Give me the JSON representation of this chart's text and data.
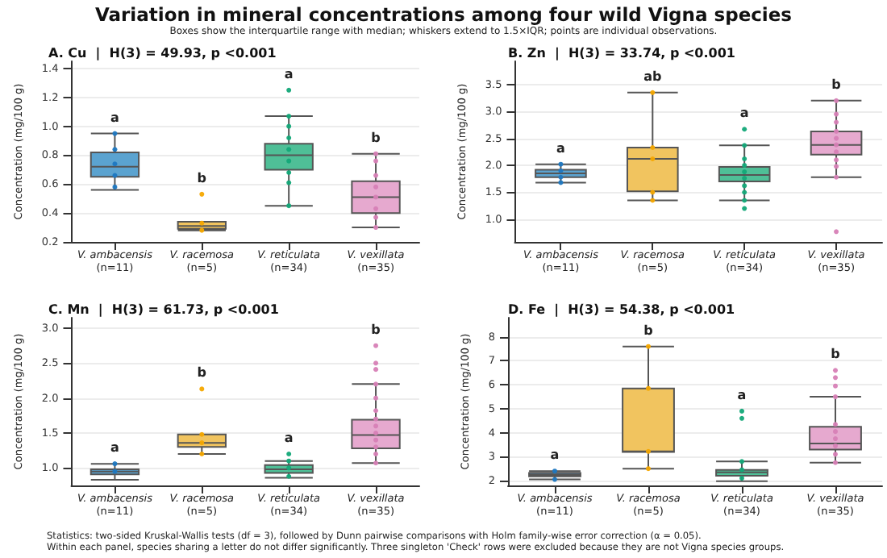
{
  "chart_data": [
    {
      "type": "box",
      "title": "A. Cu  |  H(3) = 49.93, p <0.001",
      "ylabel": "Concentration (mg/100 g)",
      "grid": "y",
      "categories": [
        "V. ambacensis\n(n=11)",
        "V. racemosa\n(n=5)",
        "V. reticulata\n(n=34)",
        "V. vexillata\n(n=35)"
      ],
      "ylim": [
        0.2,
        1.45
      ],
      "yticks": [
        0.2,
        0.4,
        0.6,
        0.8,
        {
          "value": 1,
          "label": "1.0"
        },
        1.2,
        1.4
      ],
      "annotations": [
        "Variation in mineral concentrations among four wild Vigna species",
        "Boxes show the interquartile range with median; whiskers extend to 1.5×IQR; points are individual observations.",
        "a",
        "b",
        "a",
        "b"
      ],
      "series": [
        {
          "type": "box",
          "colors": [
            "#5ba3d0",
            "#f1c45f",
            "#4fbf97",
            "#e6a9cf"
          ],
          "boxes": [
            {
              "low": 0.56,
              "q1": 0.65,
              "median": 0.72,
              "q3": 0.82,
              "high": 0.95
            },
            {
              "low": 0.28,
              "q1": 0.29,
              "median": 0.31,
              "q3": 0.34,
              "high": 0.34
            },
            {
              "low": 0.45,
              "q1": 0.7,
              "median": 0.8,
              "q3": 0.88,
              "high": 1.07
            },
            {
              "low": 0.3,
              "q1": 0.4,
              "median": 0.51,
              "q3": 0.62,
              "high": 0.81
            }
          ]
        },
        {
          "type": "scatter",
          "color": "#1f78c1",
          "x": [
            "V. ambacensis\n(n=11)",
            "V. ambacensis\n(n=11)",
            "V. ambacensis\n(n=11)",
            "V. ambacensis\n(n=11)",
            "V. ambacensis\n(n=11)"
          ],
          "values": [
            0.95,
            0.84,
            0.74,
            0.66,
            0.58
          ]
        },
        {
          "type": "scatter",
          "color": "#f5a800",
          "x": [
            "V. racemosa\n(n=5)",
            "V. racemosa\n(n=5)",
            "V. racemosa\n(n=5)"
          ],
          "values": [
            0.53,
            0.33,
            0.28
          ]
        },
        {
          "type": "scatter",
          "color": "#13a878",
          "x": [
            "V. reticulata\n(n=34)",
            "V. reticulata\n(n=34)",
            "V. reticulata\n(n=34)",
            "V. reticulata\n(n=34)",
            "V. reticulata\n(n=34)",
            "V. reticulata\n(n=34)",
            "V. reticulata\n(n=34)",
            "V. reticulata\n(n=34)",
            "V. reticulata\n(n=34)"
          ],
          "values": [
            1.25,
            1.07,
            1.0,
            0.92,
            0.84,
            0.76,
            0.68,
            0.61,
            0.45
          ]
        },
        {
          "type": "scatter",
          "color": "#d77fb6",
          "x": [
            "V. vexillata\n(n=35)",
            "V. vexillata\n(n=35)",
            "V. vexillata\n(n=35)",
            "V. vexillata\n(n=35)",
            "V. vexillata\n(n=35)",
            "V. vexillata\n(n=35)",
            "V. vexillata\n(n=35)",
            "V. vexillata\n(n=35)"
          ],
          "values": [
            0.81,
            0.76,
            0.66,
            0.58,
            0.51,
            0.43,
            0.37,
            0.3
          ]
        }
      ]
    },
    {
      "type": "box",
      "title": "B. Zn  |  H(3) = 33.74, p <0.001",
      "ylabel": "Concentration (mg/100 g)",
      "grid": "y",
      "categories": [
        "V. ambacensis\n(n=11)",
        "V. racemosa\n(n=5)",
        "V. reticulata\n(n=34)",
        "V. vexillata\n(n=35)"
      ],
      "ylim": [
        0.58,
        3.93
      ],
      "yticks": [
        {
          "value": 1,
          "label": "1.0"
        },
        1.5,
        {
          "value": 2,
          "label": "2.0"
        },
        2.5,
        {
          "value": 3,
          "label": "3.0"
        },
        3.5
      ],
      "annotations": [
        "a",
        "ab",
        "a",
        "b"
      ],
      "series": [
        {
          "type": "box",
          "colors": [
            "#5ba3d0",
            "#f1c45f",
            "#4fbf97",
            "#e6a9cf"
          ],
          "boxes": [
            {
              "low": 1.68,
              "q1": 1.78,
              "median": 1.85,
              "q3": 1.92,
              "high": 2.02
            },
            {
              "low": 1.35,
              "q1": 1.52,
              "median": 2.12,
              "q3": 2.33,
              "high": 3.35
            },
            {
              "low": 1.35,
              "q1": 1.7,
              "median": 1.82,
              "q3": 1.97,
              "high": 2.37
            },
            {
              "low": 1.78,
              "q1": 2.2,
              "median": 2.38,
              "q3": 2.63,
              "high": 3.2
            }
          ]
        },
        {
          "type": "scatter",
          "color": "#1f78c1",
          "x": [
            "V. ambacensis\n(n=11)",
            "V. ambacensis\n(n=11)",
            "V. ambacensis\n(n=11)",
            "V. ambacensis\n(n=11)"
          ],
          "values": [
            2.02,
            1.9,
            1.78,
            1.68
          ]
        },
        {
          "type": "scatter",
          "color": "#f5a800",
          "x": [
            "V. racemosa\n(n=5)",
            "V. racemosa\n(n=5)",
            "V. racemosa\n(n=5)",
            "V. racemosa\n(n=5)",
            "V. racemosa\n(n=5)"
          ],
          "values": [
            3.35,
            2.33,
            2.12,
            1.5,
            1.35
          ]
        },
        {
          "type": "scatter",
          "color": "#13a878",
          "x": [
            "V. reticulata\n(n=34)",
            "V. reticulata\n(n=34)",
            "V. reticulata\n(n=34)",
            "V. reticulata\n(n=34)",
            "V. reticulata\n(n=34)",
            "V. reticulata\n(n=34)",
            "V. reticulata\n(n=34)",
            "V. reticulata\n(n=34)",
            "V. reticulata\n(n=34)",
            "V. reticulata\n(n=34)"
          ],
          "values": [
            2.67,
            2.37,
            2.12,
            2.0,
            1.88,
            1.76,
            1.62,
            1.5,
            1.35,
            1.2
          ]
        },
        {
          "type": "scatter",
          "color": "#d77fb6",
          "x": [
            "V. vexillata\n(n=35)",
            "V. vexillata\n(n=35)",
            "V. vexillata\n(n=35)",
            "V. vexillata\n(n=35)",
            "V. vexillata\n(n=35)",
            "V. vexillata\n(n=35)",
            "V. vexillata\n(n=35)",
            "V. vexillata\n(n=35)",
            "V. vexillata\n(n=35)",
            "V. vexillata\n(n=35)",
            "V. vexillata\n(n=35)"
          ],
          "values": [
            3.2,
            2.95,
            2.8,
            2.63,
            2.5,
            2.38,
            2.25,
            2.1,
            1.98,
            1.78,
            0.77
          ]
        }
      ]
    },
    {
      "type": "box",
      "title": "C. Mn  |  H(3) = 61.73, p <0.001",
      "ylabel": "Concentration (mg/100 g)",
      "grid": "y",
      "categories": [
        "V. ambacensis\n(n=11)",
        "V. racemosa\n(n=5)",
        "V. reticulata\n(n=34)",
        "V. vexillata\n(n=35)"
      ],
      "ylim": [
        0.75,
        3.15
      ],
      "yticks": [
        {
          "value": 1,
          "label": "1.0"
        },
        1.5,
        {
          "value": 2,
          "label": "2.0"
        },
        2.5,
        {
          "value": 3,
          "label": "3.0"
        }
      ],
      "annotations": [
        "a",
        "b",
        "a",
        "b"
      ],
      "series": [
        {
          "type": "box",
          "colors": [
            "#5ba3d0",
            "#f1c45f",
            "#4fbf97",
            "#e6a9cf"
          ],
          "boxes": [
            {
              "low": 0.83,
              "q1": 0.91,
              "median": 0.95,
              "q3": 0.98,
              "high": 1.06
            },
            {
              "low": 1.2,
              "q1": 1.3,
              "median": 1.36,
              "q3": 1.48,
              "high": 1.48
            },
            {
              "low": 0.86,
              "q1": 0.93,
              "median": 0.98,
              "q3": 1.04,
              "high": 1.1
            },
            {
              "low": 1.07,
              "q1": 1.28,
              "median": 1.47,
              "q3": 1.69,
              "high": 2.2
            }
          ]
        },
        {
          "type": "scatter",
          "color": "#1f78c1",
          "x": [
            "V. ambacensis\n(n=11)",
            "V. ambacensis\n(n=11)"
          ],
          "values": [
            1.06,
            0.95
          ]
        },
        {
          "type": "scatter",
          "color": "#f5a800",
          "x": [
            "V. racemosa\n(n=5)",
            "V. racemosa\n(n=5)",
            "V. racemosa\n(n=5)",
            "V. racemosa\n(n=5)"
          ],
          "values": [
            2.13,
            1.48,
            1.36,
            1.2
          ]
        },
        {
          "type": "scatter",
          "color": "#13a878",
          "x": [
            "V. reticulata\n(n=34)",
            "V. reticulata\n(n=34)",
            "V. reticulata\n(n=34)",
            "V. reticulata\n(n=34)"
          ],
          "values": [
            1.2,
            1.1,
            1.0,
            0.88
          ]
        },
        {
          "type": "scatter",
          "color": "#d77fb6",
          "x": [
            "V. vexillata\n(n=35)",
            "V. vexillata\n(n=35)",
            "V. vexillata\n(n=35)",
            "V. vexillata\n(n=35)",
            "V. vexillata\n(n=35)",
            "V. vexillata\n(n=35)",
            "V. vexillata\n(n=35)",
            "V. vexillata\n(n=35)",
            "V. vexillata\n(n=35)",
            "V. vexillata\n(n=35)",
            "V. vexillata\n(n=35)",
            "V. vexillata\n(n=35)",
            "V. vexillata\n(n=35)"
          ],
          "values": [
            2.75,
            2.5,
            2.41,
            2.2,
            2.0,
            1.82,
            1.7,
            1.6,
            1.5,
            1.4,
            1.3,
            1.2,
            1.07
          ]
        }
      ]
    },
    {
      "type": "box",
      "title": "D. Fe  |  H(3) = 54.38, p <0.001",
      "ylabel": "Concentration (mg/100 g)",
      "grid": "y",
      "categories": [
        "V. ambacensis\n(n=11)",
        "V. racemosa\n(n=5)",
        "V. reticulata\n(n=34)",
        "V. vexillata\n(n=35)"
      ],
      "ylim": [
        1.8,
        8.8
      ],
      "yticks": [
        2,
        3,
        4,
        5,
        6,
        7,
        8
      ],
      "annotations": [
        "Statistics: two-sided Kruskal-Wallis tests (df = 3), followed by Dunn pairwise comparisons with Holm family-wise error correction (α = 0.05).",
        "Within each panel, species sharing a letter do not differ significantly. Three singleton 'Check' rows were excluded because they are not Vigna species groups.",
        "a",
        "b",
        "a",
        "b"
      ],
      "series": [
        {
          "type": "box",
          "colors": [
            "#5ba3d0",
            "#f1c45f",
            "#4fbf97",
            "#e6a9cf"
          ],
          "boxes": [
            {
              "low": 2.05,
              "q1": 2.18,
              "median": 2.25,
              "q3": 2.32,
              "high": 2.4
            },
            {
              "low": 2.5,
              "q1": 3.2,
              "median": 3.22,
              "q3": 5.85,
              "high": 7.6
            },
            {
              "low": 1.98,
              "q1": 2.2,
              "median": 2.35,
              "q3": 2.45,
              "high": 2.8
            },
            {
              "low": 2.75,
              "q1": 3.3,
              "median": 3.55,
              "q3": 4.25,
              "high": 5.5
            }
          ]
        },
        {
          "type": "scatter",
          "color": "#1f78c1",
          "x": [
            "V. ambacensis\n(n=11)",
            "V. ambacensis\n(n=11)"
          ],
          "values": [
            2.4,
            2.05
          ]
        },
        {
          "type": "scatter",
          "color": "#f5a800",
          "x": [
            "V. racemosa\n(n=5)",
            "V. racemosa\n(n=5)",
            "V. racemosa\n(n=5)",
            "V. racemosa\n(n=5)"
          ],
          "values": [
            7.6,
            5.85,
            3.22,
            2.5
          ]
        },
        {
          "type": "scatter",
          "color": "#13a878",
          "x": [
            "V. reticulata\n(n=34)",
            "V. reticulata\n(n=34)",
            "V. reticulata\n(n=34)",
            "V. reticulata\n(n=34)",
            "V. reticulata\n(n=34)"
          ],
          "values": [
            4.9,
            4.6,
            2.8,
            2.45,
            2.1
          ]
        },
        {
          "type": "scatter",
          "color": "#d77fb6",
          "x": [
            "V. vexillata\n(n=35)",
            "V. vexillata\n(n=35)",
            "V. vexillata\n(n=35)",
            "V. vexillata\n(n=35)",
            "V. vexillata\n(n=35)",
            "V. vexillata\n(n=35)",
            "V. vexillata\n(n=35)",
            "V. vexillata\n(n=35)",
            "V. vexillata\n(n=35)",
            "V. vexillata\n(n=35)"
          ],
          "values": [
            6.6,
            6.3,
            5.95,
            5.5,
            4.35,
            4.05,
            3.75,
            3.45,
            3.1,
            2.75
          ]
        }
      ]
    }
  ]
}
